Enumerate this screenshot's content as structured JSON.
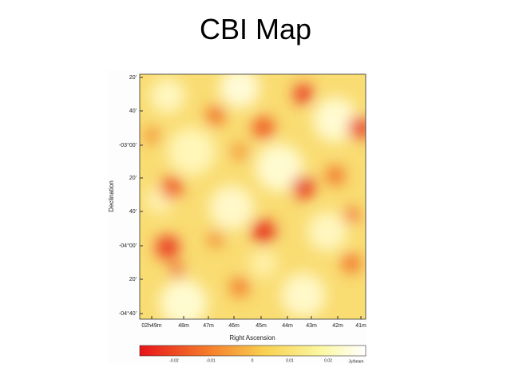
{
  "title": "CBI Map",
  "map": {
    "y_axis_label": "Declination",
    "x_axis_label": "Right Ascension",
    "y_tick_labels": [
      "20'",
      "40'",
      "-03°00'",
      "20'",
      "40'",
      "-04°00'",
      "20'",
      "-04°40'"
    ],
    "x_tick_labels": [
      "02h49m",
      "48m",
      "47m",
      "46m",
      "45m",
      "44m",
      "43m",
      "42m",
      "41m"
    ],
    "colorbar_labels": [
      "-0.02",
      "-0.01",
      "0",
      "0.01",
      "0.02"
    ],
    "colorbar_unit": "Jy/beam"
  }
}
